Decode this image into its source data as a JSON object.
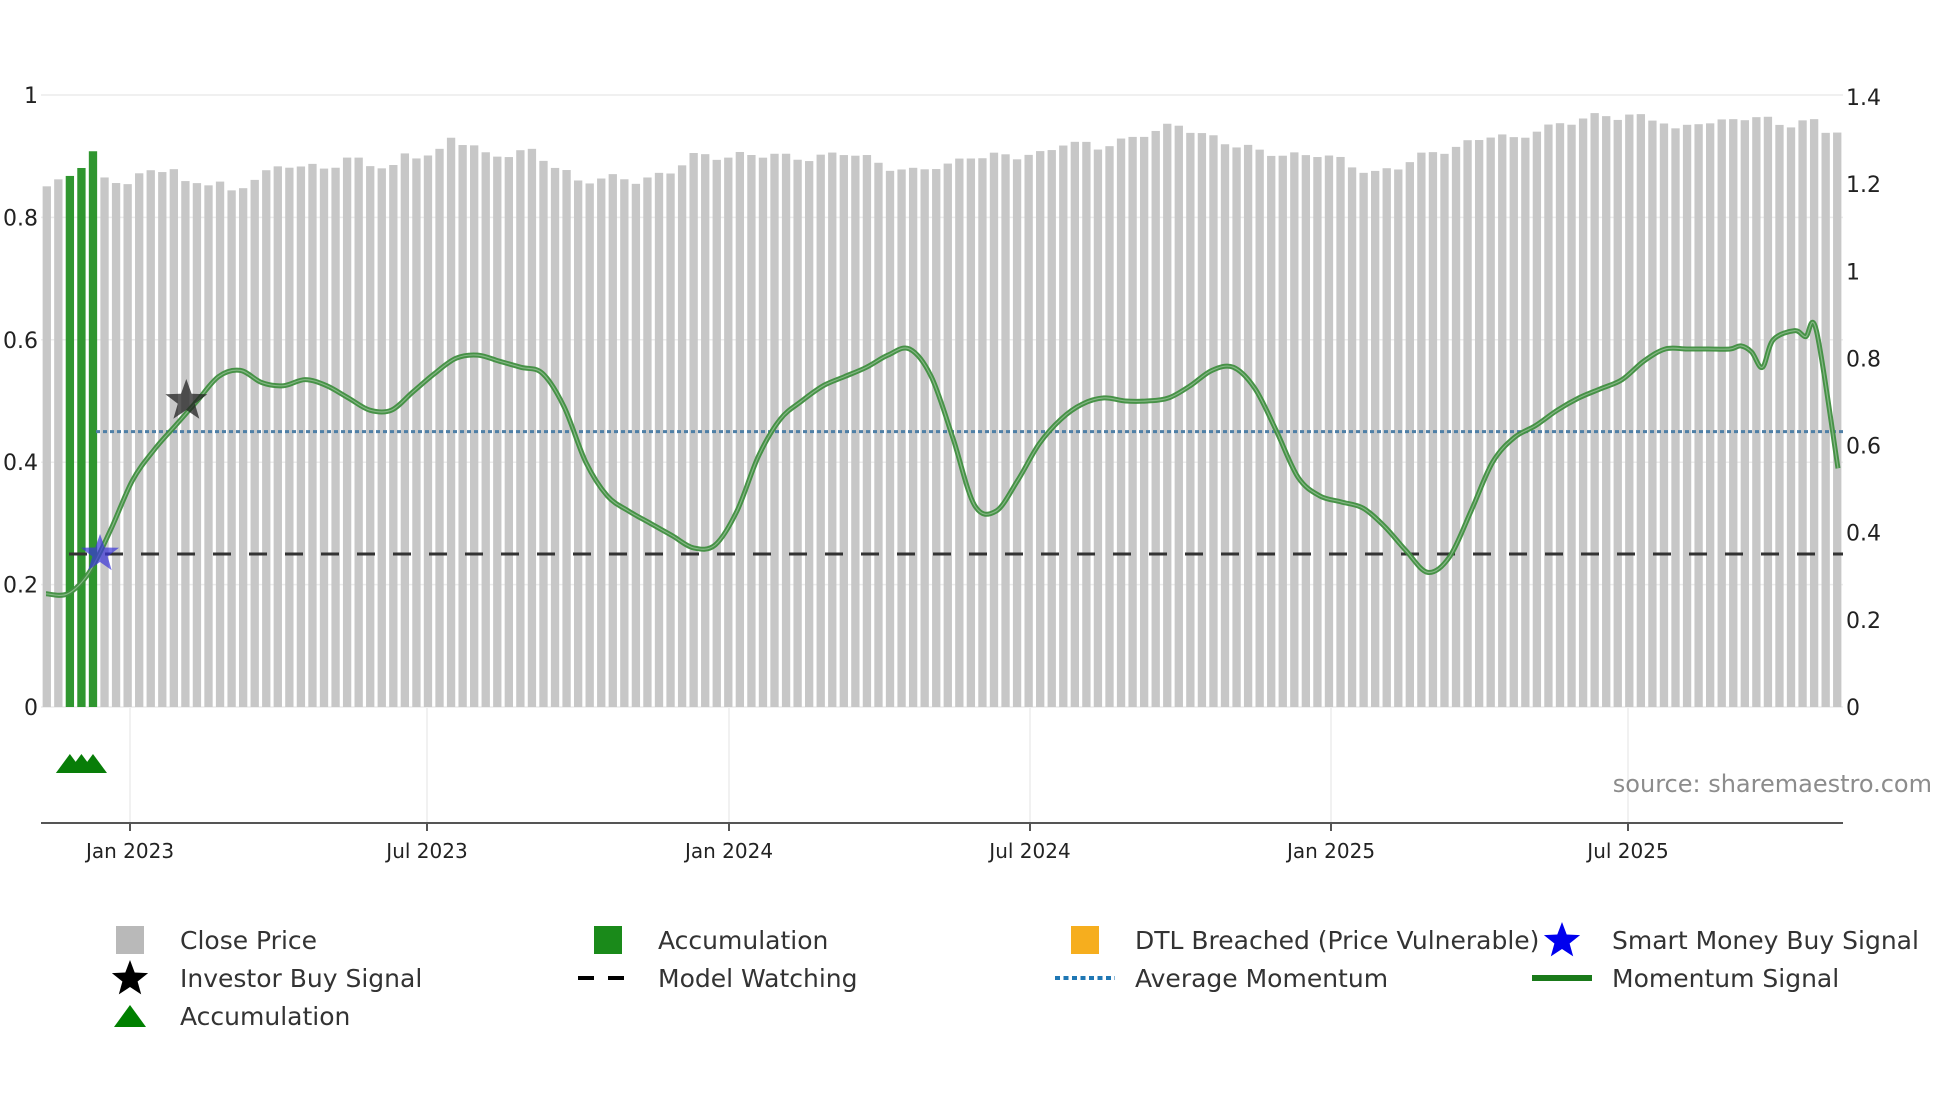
{
  "chart_data": {
    "type": "bar",
    "source_text": "source: sharemaestro.com",
    "left_axis": {
      "ylim": [
        0,
        1
      ],
      "ticks": [
        0,
        0.2,
        0.4,
        0.6,
        0.8,
        1
      ],
      "tick_labels": [
        "0",
        "0.2",
        "0.4",
        "0.6",
        "0.8",
        "1"
      ]
    },
    "right_axis": {
      "ylim": [
        0,
        1.4
      ],
      "ticks": [
        0,
        0.2,
        0.4,
        0.6,
        0.8,
        1,
        1.2,
        1.4
      ],
      "tick_labels": [
        "0",
        "0.2",
        "0.4",
        "0.6",
        "0.8",
        "1",
        "1.2",
        "1.4"
      ]
    },
    "x_ticks": [
      "Jan 2023",
      "Jul 2023",
      "Jan 2024",
      "Jul 2024",
      "Jan 2025",
      "Jul 2025"
    ],
    "bar_count": 156,
    "accumulation_bar_indices": [
      2,
      3,
      4
    ],
    "close_price_series": {
      "name": "Close Price",
      "anchors": [
        [
          0,
          1.19
        ],
        [
          2,
          1.21
        ],
        [
          4,
          1.24
        ],
        [
          5,
          1.21
        ],
        [
          7,
          1.2
        ],
        [
          9,
          1.23
        ],
        [
          10,
          1.24
        ],
        [
          11,
          1.24
        ],
        [
          12,
          1.2
        ],
        [
          15,
          1.2
        ],
        [
          16,
          1.18
        ],
        [
          18,
          1.22
        ],
        [
          21,
          1.24
        ],
        [
          24,
          1.24
        ],
        [
          26,
          1.26
        ],
        [
          28,
          1.24
        ],
        [
          30,
          1.24
        ],
        [
          31,
          1.27
        ],
        [
          34,
          1.27
        ],
        [
          35,
          1.3
        ],
        [
          37,
          1.29
        ],
        [
          38,
          1.27
        ],
        [
          42,
          1.27
        ],
        [
          45,
          1.23
        ],
        [
          46,
          1.21
        ],
        [
          48,
          1.21
        ],
        [
          51,
          1.21
        ],
        [
          54,
          1.23
        ],
        [
          56,
          1.26
        ],
        [
          60,
          1.27
        ],
        [
          64,
          1.26
        ],
        [
          69,
          1.27
        ],
        [
          72,
          1.25
        ],
        [
          75,
          1.23
        ],
        [
          78,
          1.24
        ],
        [
          80,
          1.27
        ],
        [
          84,
          1.26
        ],
        [
          86,
          1.27
        ],
        [
          88,
          1.3
        ],
        [
          91,
          1.28
        ],
        [
          95,
          1.32
        ],
        [
          98,
          1.33
        ],
        [
          101,
          1.31
        ],
        [
          105,
          1.27
        ],
        [
          110,
          1.27
        ],
        [
          113,
          1.24
        ],
        [
          115,
          1.23
        ],
        [
          117,
          1.24
        ],
        [
          120,
          1.27
        ],
        [
          122,
          1.29
        ],
        [
          125,
          1.31
        ],
        [
          127,
          1.3
        ],
        [
          129,
          1.33
        ],
        [
          132,
          1.34
        ],
        [
          135,
          1.36
        ],
        [
          137,
          1.36
        ],
        [
          140,
          1.34
        ],
        [
          141,
          1.32
        ],
        [
          143,
          1.35
        ],
        [
          145,
          1.34
        ],
        [
          147,
          1.35
        ],
        [
          149,
          1.35
        ],
        [
          151,
          1.34
        ],
        [
          153,
          1.34
        ],
        [
          154,
          1.32
        ],
        [
          155,
          1.32
        ]
      ]
    },
    "momentum_series": {
      "name": "Momentum Signal",
      "points": [
        [
          0,
          0.185
        ],
        [
          2,
          0.185
        ],
        [
          4,
          0.22
        ],
        [
          6,
          0.29
        ],
        [
          8,
          0.37
        ],
        [
          10,
          0.42
        ],
        [
          12,
          0.46
        ],
        [
          14,
          0.5
        ],
        [
          16,
          0.54
        ],
        [
          18,
          0.55
        ],
        [
          20,
          0.53
        ],
        [
          22,
          0.525
        ],
        [
          24,
          0.535
        ],
        [
          26,
          0.525
        ],
        [
          28,
          0.505
        ],
        [
          30,
          0.485
        ],
        [
          32,
          0.485
        ],
        [
          34,
          0.515
        ],
        [
          36,
          0.545
        ],
        [
          38,
          0.57
        ],
        [
          40,
          0.575
        ],
        [
          42,
          0.565
        ],
        [
          44,
          0.555
        ],
        [
          46,
          0.545
        ],
        [
          48,
          0.49
        ],
        [
          50,
          0.4
        ],
        [
          52,
          0.345
        ],
        [
          54,
          0.32
        ],
        [
          56,
          0.3
        ],
        [
          58,
          0.28
        ],
        [
          60,
          0.26
        ],
        [
          62,
          0.265
        ],
        [
          64,
          0.32
        ],
        [
          66,
          0.41
        ],
        [
          68,
          0.47
        ],
        [
          70,
          0.5
        ],
        [
          72,
          0.525
        ],
        [
          74,
          0.54
        ],
        [
          76,
          0.555
        ],
        [
          78,
          0.575
        ],
        [
          80,
          0.585
        ],
        [
          82,
          0.54
        ],
        [
          84,
          0.44
        ],
        [
          86,
          0.33
        ],
        [
          88,
          0.32
        ],
        [
          90,
          0.37
        ],
        [
          92,
          0.43
        ],
        [
          94,
          0.47
        ],
        [
          96,
          0.495
        ],
        [
          98,
          0.505
        ],
        [
          100,
          0.5
        ],
        [
          102,
          0.5
        ],
        [
          104,
          0.505
        ],
        [
          106,
          0.525
        ],
        [
          108,
          0.55
        ],
        [
          110,
          0.555
        ],
        [
          112,
          0.52
        ],
        [
          114,
          0.45
        ],
        [
          116,
          0.375
        ],
        [
          118,
          0.345
        ],
        [
          120,
          0.335
        ],
        [
          122,
          0.325
        ],
        [
          124,
          0.295
        ],
        [
          126,
          0.255
        ],
        [
          128,
          0.22
        ],
        [
          130,
          0.245
        ],
        [
          132,
          0.32
        ],
        [
          134,
          0.4
        ],
        [
          136,
          0.44
        ],
        [
          138,
          0.46
        ],
        [
          140,
          0.485
        ],
        [
          142,
          0.505
        ],
        [
          144,
          0.52
        ],
        [
          146,
          0.535
        ],
        [
          148,
          0.565
        ],
        [
          150,
          0.585
        ],
        [
          152,
          0.585
        ],
        [
          154,
          0.585
        ],
        [
          156,
          0.585
        ],
        [
          157,
          0.59
        ],
        [
          158,
          0.58
        ],
        [
          159,
          0.555
        ],
        [
          160,
          0.6
        ],
        [
          162,
          0.615
        ],
        [
          163,
          0.605
        ],
        [
          164,
          0.615
        ],
        [
          166,
          0.39
        ]
      ]
    },
    "average_momentum": 0.45,
    "model_watching_level": 0.25,
    "investor_buy_signal": {
      "x_index": 13,
      "value": 0.5
    },
    "smart_money_buy_signal": {
      "x_index": 5,
      "value": 0.25
    },
    "accumulation_markers": [
      2,
      3,
      4
    ],
    "legend": [
      {
        "label": "Close Price",
        "symbol": "square",
        "color": "#b9b9b9"
      },
      {
        "label": "Accumulation",
        "symbol": "square",
        "color": "#1a8a1a"
      },
      {
        "label": "DTL Breached (Price Vulnerable)",
        "symbol": "square",
        "color": "#f6ae1e"
      },
      {
        "label": "Smart Money Buy Signal",
        "symbol": "star",
        "color": "#0000ee"
      },
      {
        "label": "Investor Buy Signal",
        "symbol": "star",
        "color": "#000000"
      },
      {
        "label": "Model Watching",
        "symbol": "dash",
        "color": "#000000"
      },
      {
        "label": "Average Momentum",
        "symbol": "dot",
        "color": "#1f77b4"
      },
      {
        "label": "Momentum Signal",
        "symbol": "line",
        "color": "#1a7a1a"
      },
      {
        "label": "Accumulation",
        "symbol": "triangle",
        "color": "#008000"
      }
    ],
    "colors": {
      "close_bar": "#c7c7c7",
      "accum_bar": "#2f962f",
      "momentum_line": "#3f8e3f",
      "avg_line": "#4e7fa6",
      "watch_line": "#333333",
      "grid": "#ececec"
    }
  }
}
